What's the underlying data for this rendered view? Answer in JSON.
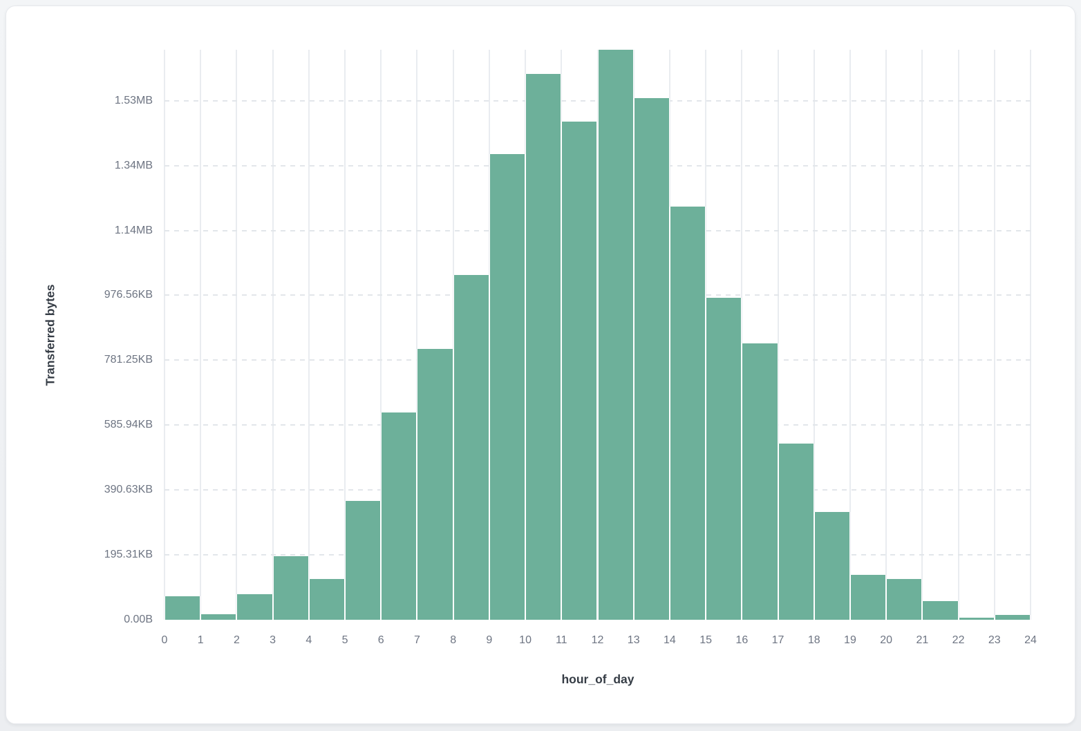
{
  "page": {
    "background_color": "#eceef1"
  },
  "card": {
    "background_color": "#ffffff",
    "border_color": "#e6e8ec"
  },
  "chart_data": {
    "type": "bar",
    "title": "",
    "xlabel": "hour_of_day",
    "ylabel": "Transferred bytes",
    "x_tick_labels": [
      "0",
      "1",
      "2",
      "3",
      "4",
      "5",
      "6",
      "7",
      "8",
      "9",
      "10",
      "11",
      "12",
      "13",
      "14",
      "15",
      "16",
      "17",
      "18",
      "19",
      "20",
      "21",
      "22",
      "23",
      "24"
    ],
    "y_tick_labels": [
      "0.00B",
      "195.31KB",
      "390.63KB",
      "585.94KB",
      "781.25KB",
      "976.56KB",
      "1.14MB",
      "1.34MB",
      "1.53MB"
    ],
    "y_tick_bytes": [
      0,
      200000,
      400000,
      600000,
      800000,
      1000000,
      1200000,
      1400000,
      1600000
    ],
    "ylim_bytes": [
      0,
      1757000
    ],
    "hours": [
      0,
      1,
      2,
      3,
      4,
      5,
      6,
      7,
      8,
      9,
      10,
      11,
      12,
      13,
      14,
      15,
      16,
      17,
      18,
      19,
      20,
      21,
      22,
      23
    ],
    "values_bytes": [
      72000,
      17000,
      79000,
      196000,
      126000,
      366000,
      639000,
      835000,
      1063000,
      1436000,
      1683000,
      1536000,
      1757000,
      1607000,
      1274000,
      992000,
      852000,
      543000,
      332000,
      138000,
      126000,
      57000,
      6000,
      14000
    ],
    "bar_color": "#6DB09A",
    "grid": {
      "vertical": "solid",
      "horizontal": "dashed"
    },
    "legend_position": "none",
    "tick_label_color": "#6d7482",
    "axis_title_color": "#363d46"
  }
}
